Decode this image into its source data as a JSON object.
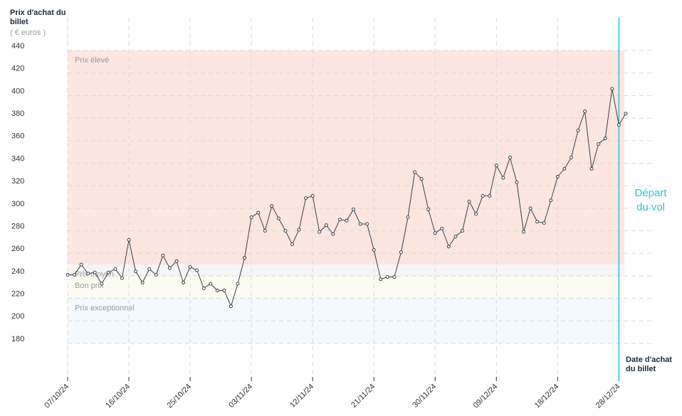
{
  "chart_data": {
    "type": "line",
    "y_title": "Prix d'achat du billet",
    "y_subtitle": "( € euros )",
    "x_title": "Date d'achat du billet",
    "departure_label": "Départ du vol",
    "categories": [
      "07/10/24",
      null,
      null,
      null,
      null,
      null,
      null,
      null,
      null,
      "16/10/24",
      null,
      null,
      null,
      null,
      null,
      null,
      null,
      null,
      "25/10/24",
      null,
      null,
      null,
      null,
      null,
      null,
      null,
      null,
      "03/11/24",
      null,
      null,
      null,
      null,
      null,
      null,
      null,
      null,
      "12/11/24",
      null,
      null,
      null,
      null,
      null,
      null,
      null,
      null,
      "21/11/24",
      null,
      null,
      null,
      null,
      null,
      null,
      null,
      null,
      "30/11/24",
      null,
      null,
      null,
      null,
      null,
      null,
      null,
      null,
      "09/12/24",
      null,
      null,
      null,
      null,
      null,
      null,
      null,
      null,
      "18/12/24",
      null,
      null,
      null,
      null,
      null,
      null,
      null,
      null,
      "28/12/24",
      null
    ],
    "series": [
      {
        "color": "#3a3f4b",
        "values": [
          241,
          241,
          250,
          242,
          243,
          233,
          243,
          246,
          238,
          272,
          244,
          234,
          246,
          241,
          258,
          247,
          253,
          234,
          248,
          245,
          229,
          233,
          227,
          227,
          213,
          233,
          256,
          292,
          296,
          280,
          302,
          291,
          280,
          268,
          281,
          309,
          311,
          279,
          285,
          277,
          290,
          289,
          299,
          286,
          286,
          263,
          237,
          239,
          239,
          261,
          292,
          332,
          326,
          299,
          278,
          282,
          266,
          275,
          280,
          306,
          295,
          311,
          311,
          338,
          327,
          345,
          323,
          279,
          300,
          288,
          287,
          307,
          328,
          335,
          345,
          369,
          386,
          335,
          357,
          362,
          406,
          374,
          384
        ]
      }
    ],
    "bands": [
      {
        "label": "Prix élevé",
        "from": 250,
        "to": 440,
        "color": "#fde6e0"
      },
      {
        "label": "Prix moyen",
        "from": 240,
        "to": 250,
        "color": "#f5f5f5"
      },
      {
        "label": "Bon prix",
        "from": 220,
        "to": 240,
        "color": "#fbfbf2"
      },
      {
        "label": "Prix exceptionnel",
        "from": 180,
        "to": 220,
        "color": "#f3f9fc"
      }
    ],
    "departure_color": "#29c4dc",
    "ylim": [
      180,
      440
    ],
    "yticks": [
      180,
      200,
      220,
      240,
      260,
      280,
      300,
      320,
      340,
      360,
      380,
      400,
      420,
      440
    ],
    "grid": true
  }
}
